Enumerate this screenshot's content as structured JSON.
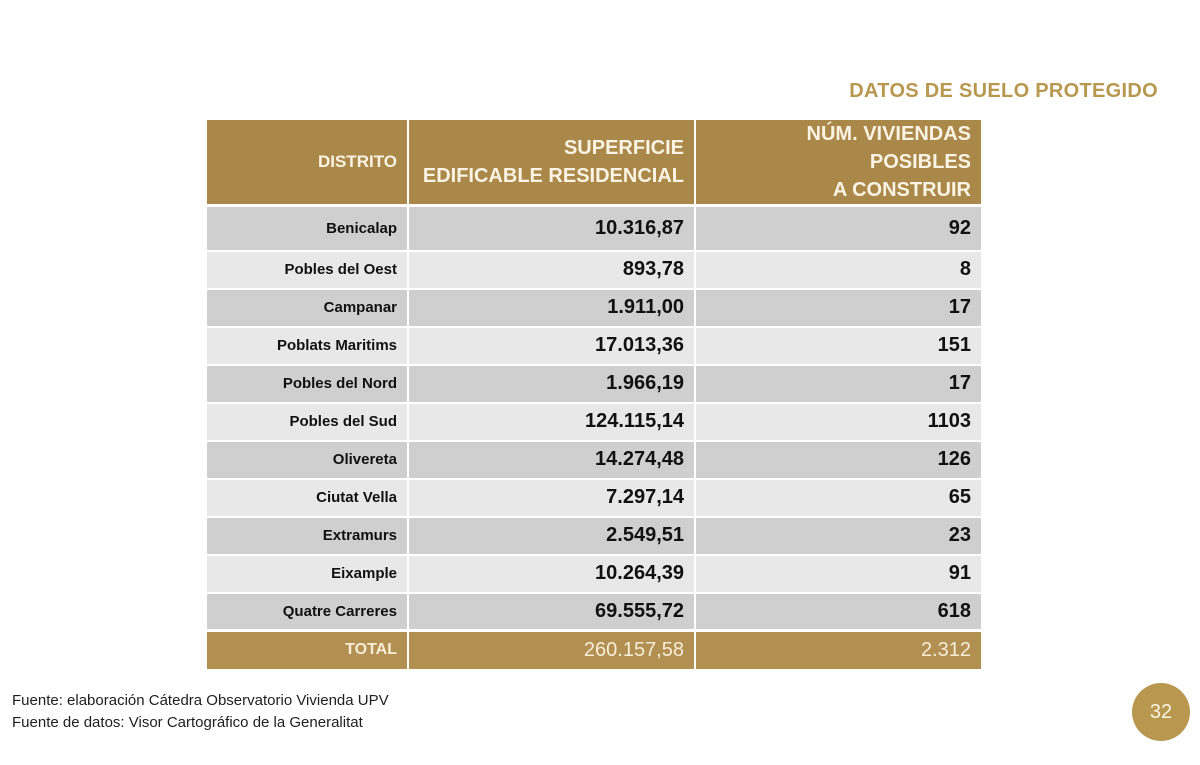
{
  "slide": {
    "title": "DATOS DE SUELO PROTEGIDO",
    "page_number": "32",
    "accent_color": "#b8974f",
    "header_color": "#a98849",
    "row_dark": "#cfcfcf",
    "row_light": "#e8e8e8"
  },
  "table": {
    "headers": {
      "distrito": "DISTRITO",
      "superficie_line1": "SUPERFICIE",
      "superficie_line2": "EDIFICABLE RESIDENCIAL",
      "viviendas_line1": "NÚM. VIVIENDAS POSIBLES",
      "viviendas_line2": "A CONSTRUIR"
    },
    "rows": [
      {
        "distrito": "Benicalap",
        "superficie": "10.316,87",
        "viviendas": "92"
      },
      {
        "distrito": "Pobles del Oest",
        "superficie": "893,78",
        "viviendas": "8"
      },
      {
        "distrito": "Campanar",
        "superficie": "1.911,00",
        "viviendas": "17"
      },
      {
        "distrito": "Poblats Maritims",
        "superficie": "17.013,36",
        "viviendas": "151"
      },
      {
        "distrito": "Pobles del Nord",
        "superficie": "1.966,19",
        "viviendas": "17"
      },
      {
        "distrito": "Pobles del Sud",
        "superficie": "124.115,14",
        "viviendas": "1103"
      },
      {
        "distrito": "Olivereta",
        "superficie": "14.274,48",
        "viviendas": "126"
      },
      {
        "distrito": "Ciutat Vella",
        "superficie": "7.297,14",
        "viviendas": "65"
      },
      {
        "distrito": "Extramurs",
        "superficie": "2.549,51",
        "viviendas": "23"
      },
      {
        "distrito": "Eixample",
        "superficie": "10.264,39",
        "viviendas": "91"
      },
      {
        "distrito": "Quatre Carreres",
        "superficie": "69.555,72",
        "viviendas": "618"
      }
    ],
    "total": {
      "label": "TOTAL",
      "superficie": "260.157,58",
      "viviendas": "2.312"
    }
  },
  "footer": {
    "source_line1": "Fuente: elaboración Cátedra Observatorio Vivienda UPV",
    "source_line2": "Fuente de datos: Visor Cartográfico de la Generalitat"
  }
}
